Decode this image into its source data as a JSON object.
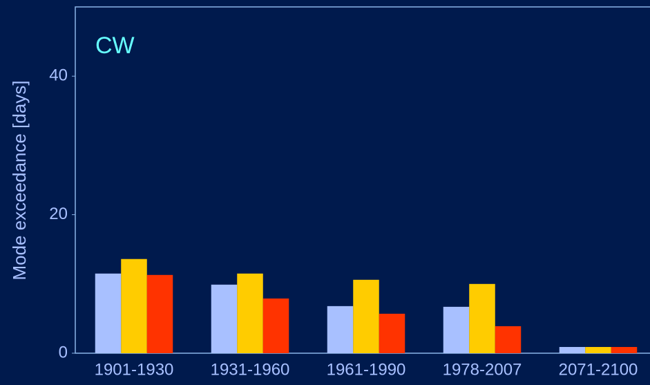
{
  "chart_data": {
    "type": "bar",
    "annotation": "CW",
    "ylabel": "Mode exceedance [days]",
    "categories": [
      "1901-1930",
      "1931-1960",
      "1961-1990",
      "1978-2007",
      "2071-2100"
    ],
    "series": [
      {
        "color": "#a8c0ff",
        "values": [
          11.5,
          9.9,
          6.8,
          6.7,
          0.9
        ]
      },
      {
        "color": "#ffcc00",
        "values": [
          13.6,
          11.5,
          10.6,
          10.0,
          0.9
        ]
      },
      {
        "color": "#ff3300",
        "values": [
          11.3,
          7.9,
          5.7,
          3.9,
          0.9
        ]
      }
    ],
    "ylim": [
      0,
      50
    ],
    "yticks": [
      0,
      20,
      40
    ]
  }
}
